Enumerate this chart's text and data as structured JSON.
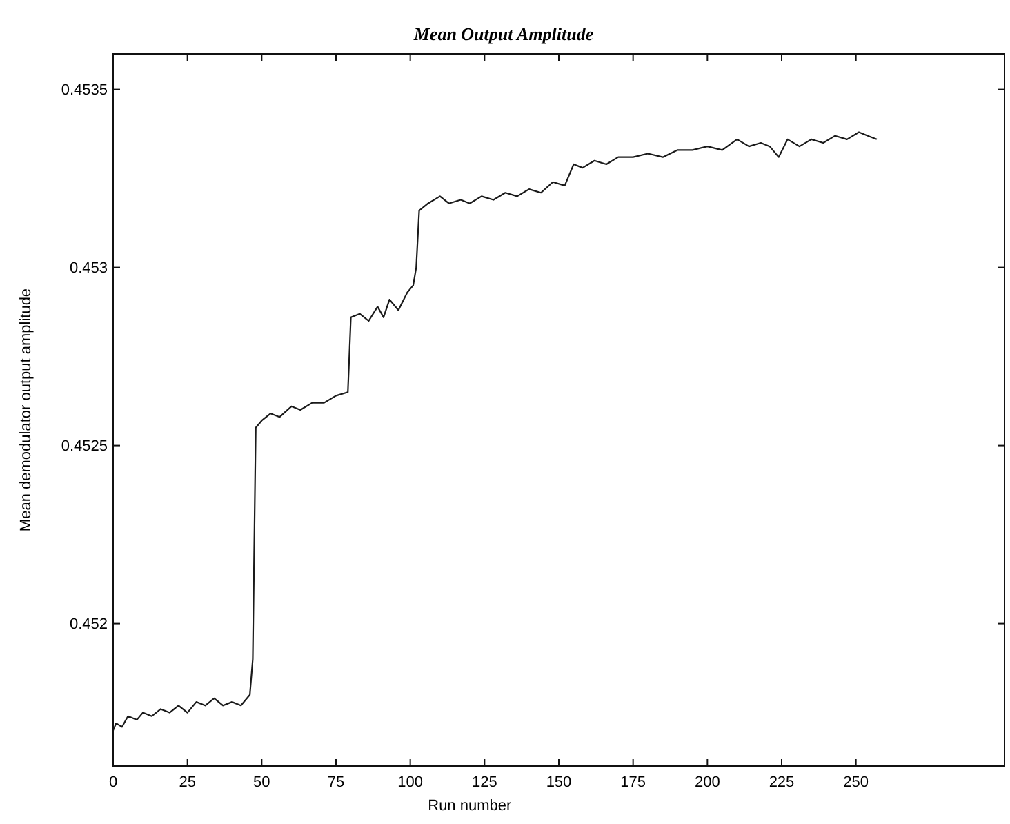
{
  "chart_data": {
    "type": "line",
    "title": "Mean Output Amplitude",
    "xlabel": "Run number",
    "ylabel": "Mean demodulator output amplitude",
    "xlim": [
      0,
      300
    ],
    "ylim": [
      0.4516,
      0.4536
    ],
    "xticks": [
      0,
      25,
      50,
      75,
      100,
      125,
      150,
      175,
      200,
      225,
      250
    ],
    "yticks": [
      0.452,
      0.4525,
      0.453,
      0.4535
    ],
    "series": [
      {
        "color": "#1a1a1a",
        "x": [
          0,
          1,
          3,
          5,
          8,
          10,
          13,
          16,
          19,
          22,
          25,
          28,
          31,
          34,
          37,
          40,
          43,
          46,
          47,
          48,
          50,
          53,
          56,
          60,
          63,
          67,
          71,
          75,
          79,
          80,
          83,
          86,
          89,
          91,
          93,
          96,
          99,
          101,
          102,
          103,
          106,
          110,
          113,
          117,
          120,
          124,
          128,
          132,
          136,
          140,
          144,
          148,
          152,
          155,
          158,
          162,
          166,
          170,
          175,
          180,
          185,
          190,
          195,
          200,
          205,
          210,
          214,
          218,
          221,
          224,
          227,
          231,
          235,
          239,
          243,
          247,
          251,
          254,
          257
        ],
        "values": [
          0.4517,
          0.45172,
          0.45171,
          0.45174,
          0.45173,
          0.45175,
          0.45174,
          0.45176,
          0.45175,
          0.45177,
          0.45175,
          0.45178,
          0.45177,
          0.45179,
          0.45177,
          0.45178,
          0.45177,
          0.4518,
          0.4519,
          0.45255,
          0.45257,
          0.45259,
          0.45258,
          0.45261,
          0.4526,
          0.45262,
          0.45262,
          0.45264,
          0.45265,
          0.45286,
          0.45287,
          0.45285,
          0.45289,
          0.45286,
          0.45291,
          0.45288,
          0.45293,
          0.45295,
          0.453,
          0.45316,
          0.45318,
          0.4532,
          0.45318,
          0.45319,
          0.45318,
          0.4532,
          0.45319,
          0.45321,
          0.4532,
          0.45322,
          0.45321,
          0.45324,
          0.45323,
          0.45329,
          0.45328,
          0.4533,
          0.45329,
          0.45331,
          0.45331,
          0.45332,
          0.45331,
          0.45333,
          0.45333,
          0.45334,
          0.45333,
          0.45336,
          0.45334,
          0.45335,
          0.45334,
          0.45331,
          0.45336,
          0.45334,
          0.45336,
          0.45335,
          0.45337,
          0.45336,
          0.45338,
          0.45337,
          0.45336
        ]
      }
    ]
  }
}
